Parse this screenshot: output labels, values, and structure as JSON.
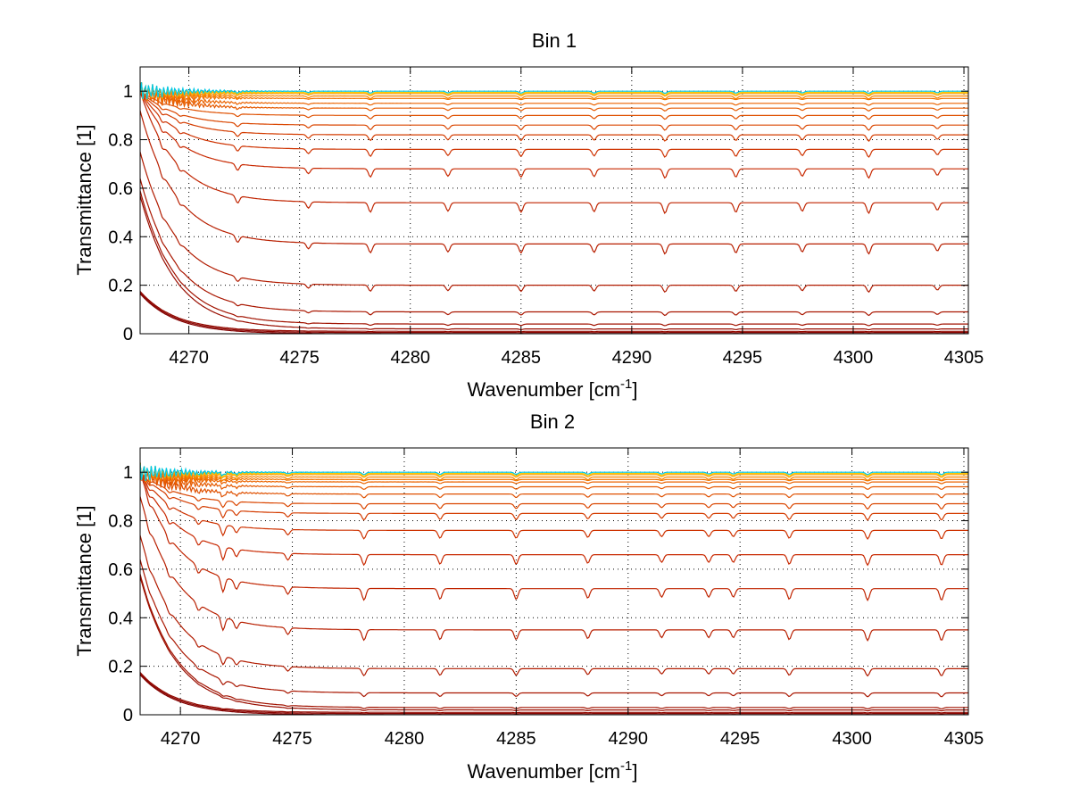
{
  "chart_data": [
    {
      "type": "line",
      "title": "Bin 1",
      "xlabel": "Wavenumber [cm",
      "xlabel_sup": "-1",
      "xlabel_close": "]",
      "ylabel": "Transmittance [1]",
      "xlim": [
        4267.8,
        4305.2
      ],
      "ylim": [
        0,
        1.1
      ],
      "grid": true,
      "xticks": [
        {
          "value": 4270,
          "label": "4270"
        },
        {
          "value": 4275,
          "label": "4275"
        },
        {
          "value": 4280,
          "label": "4280"
        },
        {
          "value": 4285,
          "label": "4285"
        },
        {
          "value": 4290,
          "label": "4290"
        },
        {
          "value": 4295,
          "label": "4295"
        },
        {
          "value": 4300,
          "label": "4300"
        },
        {
          "value": 4305,
          "label": "4305"
        }
      ],
      "yticks": [
        {
          "value": 0,
          "label": "0"
        },
        {
          "value": 0.2,
          "label": "0.2"
        },
        {
          "value": 0.4,
          "label": "0.4"
        },
        {
          "value": 0.6,
          "label": "0.6"
        },
        {
          "value": 0.8,
          "label": "0.8"
        },
        {
          "value": 1,
          "label": "1"
        }
      ],
      "series_levels": [
        0.0,
        0.005,
        0.01,
        0.02,
        0.04,
        0.09,
        0.2,
        0.37,
        0.54,
        0.68,
        0.76,
        0.82,
        0.86,
        0.9,
        0.93,
        0.95,
        0.97,
        0.98,
        0.99,
        0.995,
        1.0
      ],
      "absorption_lines": [
        {
          "x": 4268.8,
          "depth": 0.25
        },
        {
          "x": 4269.6,
          "depth": 0.2
        },
        {
          "x": 4272.2,
          "depth": 0.35
        },
        {
          "x": 4275.4,
          "depth": 0.3
        },
        {
          "x": 4278.2,
          "depth": 0.45
        },
        {
          "x": 4281.7,
          "depth": 0.4
        },
        {
          "x": 4285.0,
          "depth": 0.45
        },
        {
          "x": 4288.3,
          "depth": 0.42
        },
        {
          "x": 4291.5,
          "depth": 0.5
        },
        {
          "x": 4294.7,
          "depth": 0.45
        },
        {
          "x": 4297.7,
          "depth": 0.4
        },
        {
          "x": 4300.7,
          "depth": 0.5
        },
        {
          "x": 4303.8,
          "depth": 0.35
        }
      ]
    },
    {
      "type": "line",
      "title": "Bin 2",
      "xlabel": "Wavenumber [cm",
      "xlabel_sup": "-1",
      "xlabel_close": "]",
      "ylabel": "Transmittance [1]",
      "xlim": [
        4268.2,
        4305.2
      ],
      "ylim": [
        0,
        1.1
      ],
      "grid": true,
      "xticks": [
        {
          "value": 4270,
          "label": "4270"
        },
        {
          "value": 4275,
          "label": "4275"
        },
        {
          "value": 4280,
          "label": "4280"
        },
        {
          "value": 4285,
          "label": "4285"
        },
        {
          "value": 4290,
          "label": "4290"
        },
        {
          "value": 4295,
          "label": "4295"
        },
        {
          "value": 4300,
          "label": "4300"
        },
        {
          "value": 4305,
          "label": "4305"
        }
      ],
      "yticks": [
        {
          "value": 0,
          "label": "0"
        },
        {
          "value": 0.2,
          "label": "0.2"
        },
        {
          "value": 0.4,
          "label": "0.4"
        },
        {
          "value": 0.6,
          "label": "0.6"
        },
        {
          "value": 0.8,
          "label": "0.8"
        },
        {
          "value": 1,
          "label": "1"
        }
      ],
      "series_levels": [
        0.0,
        0.005,
        0.01,
        0.02,
        0.03,
        0.09,
        0.19,
        0.35,
        0.52,
        0.66,
        0.76,
        0.83,
        0.87,
        0.91,
        0.94,
        0.96,
        0.97,
        0.98,
        0.99,
        0.995,
        1.0
      ],
      "absorption_lines": [
        {
          "x": 4268.6,
          "depth": 0.3
        },
        {
          "x": 4269.5,
          "depth": 0.3
        },
        {
          "x": 4270.8,
          "depth": 0.35
        },
        {
          "x": 4271.9,
          "depth": 0.7
        },
        {
          "x": 4272.5,
          "depth": 0.4
        },
        {
          "x": 4274.8,
          "depth": 0.35
        },
        {
          "x": 4278.2,
          "depth": 0.55
        },
        {
          "x": 4281.6,
          "depth": 0.5
        },
        {
          "x": 4285.0,
          "depth": 0.5
        },
        {
          "x": 4288.2,
          "depth": 0.45
        },
        {
          "x": 4291.5,
          "depth": 0.4
        },
        {
          "x": 4293.6,
          "depth": 0.4
        },
        {
          "x": 4294.7,
          "depth": 0.4
        },
        {
          "x": 4297.2,
          "depth": 0.5
        },
        {
          "x": 4300.7,
          "depth": 0.55
        },
        {
          "x": 4304.0,
          "depth": 0.55
        }
      ]
    }
  ]
}
